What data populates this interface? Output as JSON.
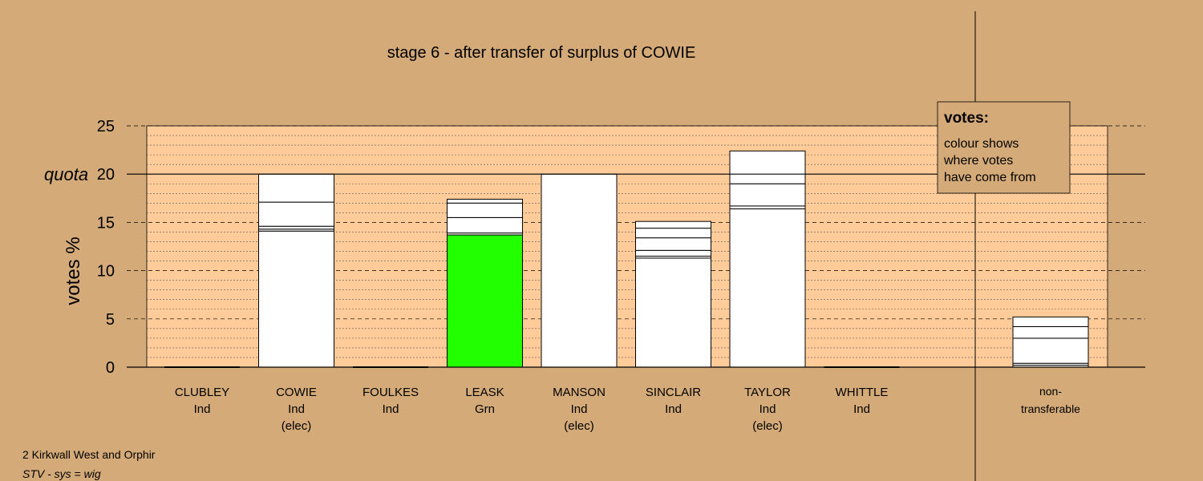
{
  "chart_data": {
    "type": "bar",
    "stacked": true,
    "title": "stage 6 - after transfer of surplus of COWIE",
    "ylabel": "votes %",
    "ylim": [
      0,
      25
    ],
    "yticks": [
      0,
      5,
      10,
      15,
      20,
      25
    ],
    "quota": {
      "label": "quota",
      "value": 20
    },
    "grid": true,
    "categories": [
      {
        "name": "CLUBLEY",
        "party": "Ind",
        "status": ""
      },
      {
        "name": "COWIE",
        "party": "Ind",
        "status": "(elec)"
      },
      {
        "name": "FOULKES",
        "party": "Ind",
        "status": ""
      },
      {
        "name": "LEASK",
        "party": "Grn",
        "status": ""
      },
      {
        "name": "MANSON",
        "party": "Ind",
        "status": "(elec)"
      },
      {
        "name": "SINCLAIR",
        "party": "Ind",
        "status": ""
      },
      {
        "name": "TAYLOR",
        "party": "Ind",
        "status": "(elec)"
      },
      {
        "name": "WHITTLE",
        "party": "Ind",
        "status": ""
      }
    ],
    "bars": [
      {
        "category": "CLUBLEY",
        "segments": []
      },
      {
        "category": "COWIE",
        "segments": [
          {
            "value": 14.1,
            "color": "#ffffff"
          },
          {
            "value": 0.2,
            "color": "#ffffff"
          },
          {
            "value": 0.3,
            "color": "#ffffff"
          },
          {
            "value": 2.5,
            "color": "#ffffff"
          },
          {
            "value": 2.9,
            "color": "#ffffff"
          }
        ]
      },
      {
        "category": "FOULKES",
        "segments": []
      },
      {
        "category": "LEASK",
        "segments": [
          {
            "value": 13.7,
            "color": "#22ff00"
          },
          {
            "value": 0.2,
            "color": "#ffffff"
          },
          {
            "value": 1.6,
            "color": "#ffffff"
          },
          {
            "value": 1.5,
            "color": "#ffffff"
          },
          {
            "value": 0.4,
            "color": "#ffffff"
          }
        ]
      },
      {
        "category": "MANSON",
        "segments": [
          {
            "value": 20.0,
            "color": "#ffffff"
          }
        ]
      },
      {
        "category": "SINCLAIR",
        "segments": [
          {
            "value": 11.3,
            "color": "#ffffff"
          },
          {
            "value": 0.2,
            "color": "#ffffff"
          },
          {
            "value": 0.6,
            "color": "#ffffff"
          },
          {
            "value": 1.3,
            "color": "#ffffff"
          },
          {
            "value": 1.0,
            "color": "#ffffff"
          },
          {
            "value": 0.7,
            "color": "#ffffff"
          }
        ]
      },
      {
        "category": "TAYLOR",
        "segments": [
          {
            "value": 16.4,
            "color": "#ffffff"
          },
          {
            "value": 0.3,
            "color": "#ffffff"
          },
          {
            "value": 2.3,
            "color": "#ffffff"
          },
          {
            "value": 3.4,
            "color": "#ffffff"
          }
        ]
      },
      {
        "category": "WHITTLE",
        "segments": []
      }
    ],
    "nontransferable": {
      "label_line1": "non-",
      "label_line2": "transferable",
      "segments": [
        {
          "value": 0.2,
          "color": "#ffffff"
        },
        {
          "value": 0.2,
          "color": "#ffffff"
        },
        {
          "value": 2.6,
          "color": "#ffffff"
        },
        {
          "value": 1.2,
          "color": "#ffffff"
        },
        {
          "value": 1.0,
          "color": "#ffffff"
        }
      ]
    },
    "legend": {
      "title": "votes:",
      "lines": [
        "colour shows",
        "where votes",
        "have come from"
      ],
      "placement": "top-right"
    }
  },
  "footer": {
    "ward": "2 Kirkwall West and Orphir",
    "system": "STV - sys = wig"
  },
  "colors": {
    "background": "#d4aa78",
    "plot_area": "#ffcc99",
    "Grn": "#22ff00"
  }
}
